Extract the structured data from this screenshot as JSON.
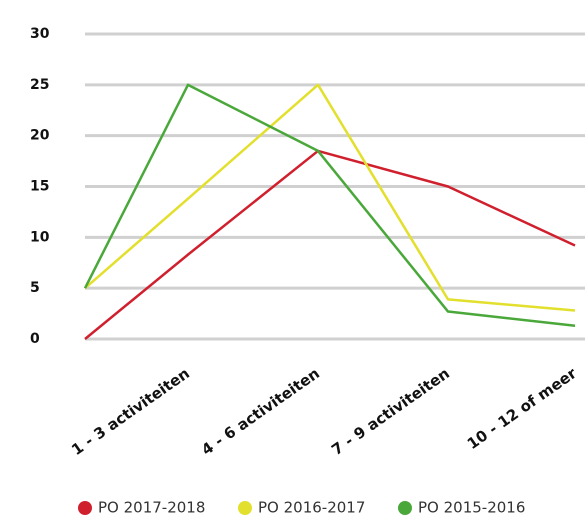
{
  "chart_data": {
    "type": "line",
    "categories": [
      null,
      "1 - 3 activiteiten",
      "4 - 6 activiteiten",
      "7 - 9 activiteiten",
      "10 - 12 of meer"
    ],
    "series": [
      {
        "name": "PO 2017-2018",
        "color": "#d0202e",
        "values": [
          0,
          8.3,
          18.5,
          15,
          9.2
        ]
      },
      {
        "name": "PO 2016-2017",
        "color": "#e2e02c",
        "values": [
          5,
          13.8,
          25,
          3.9,
          2.8
        ]
      },
      {
        "name": "PO 2015-2016",
        "color": "#4aa83a",
        "values": [
          5,
          25,
          18.5,
          2.7,
          1.3
        ]
      }
    ],
    "ylim": [
      0,
      30
    ],
    "yticks": [
      0,
      5,
      10,
      15,
      20,
      25,
      30
    ],
    "grid": true,
    "legend": "bottom"
  }
}
